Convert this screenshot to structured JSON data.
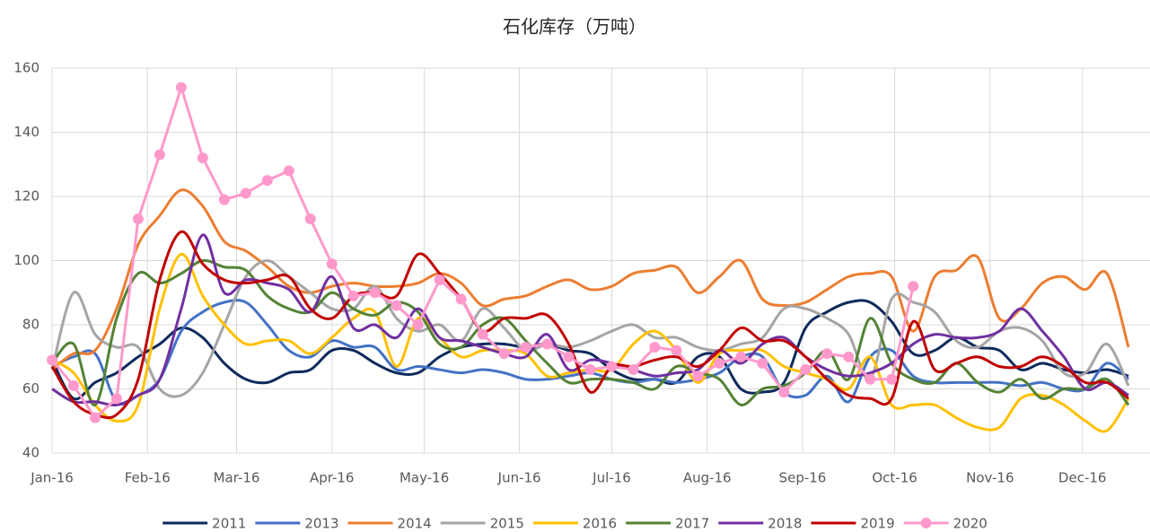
{
  "chart_data": {
    "type": "line",
    "title": "石化库存（万吨）",
    "x": [
      0,
      1,
      2,
      3,
      4,
      5,
      6,
      7,
      8,
      9,
      10,
      11,
      12,
      13,
      14,
      15,
      16,
      17,
      18,
      19,
      20,
      21,
      22,
      23,
      24,
      25,
      26,
      27,
      28,
      29,
      30,
      31,
      32,
      33,
      34,
      35,
      36,
      37,
      38,
      39,
      40,
      41,
      42,
      43,
      44,
      45,
      46,
      47,
      48,
      49,
      50
    ],
    "xlim": [
      0,
      51
    ],
    "xticks": [
      {
        "value": 0,
        "label": "Jan-16"
      },
      {
        "value": 4.43,
        "label": "Feb-16"
      },
      {
        "value": 8.57,
        "label": "Mar-16"
      },
      {
        "value": 13,
        "label": "Apr-16"
      },
      {
        "value": 17.29,
        "label": "May-16"
      },
      {
        "value": 21.71,
        "label": "Jun-16"
      },
      {
        "value": 26,
        "label": "Jul-16"
      },
      {
        "value": 30.43,
        "label": "Aug-16"
      },
      {
        "value": 34.86,
        "label": "Sep-16"
      },
      {
        "value": 39.14,
        "label": "Oct-16"
      },
      {
        "value": 43.57,
        "label": "Nov-16"
      },
      {
        "value": 47.86,
        "label": "Dec-16"
      }
    ],
    "ylim": [
      40,
      160
    ],
    "yticks": [
      40,
      60,
      80,
      100,
      120,
      140,
      160
    ],
    "grid": true,
    "legend": "bottom",
    "series": [
      {
        "name": "2011",
        "color": "#0e2a5c",
        "smooth": true,
        "values": [
          69,
          57,
          62,
          65,
          70,
          74,
          79,
          76,
          68,
          63,
          62,
          65,
          66,
          72,
          72,
          68,
          65,
          65,
          70,
          73,
          74,
          74,
          73,
          74,
          72,
          71,
          66,
          63,
          63,
          62,
          70,
          70,
          60,
          59,
          62,
          79,
          84,
          87,
          87,
          81,
          71,
          72,
          76,
          73,
          72,
          66,
          68,
          66,
          65,
          66,
          64
        ]
      },
      {
        "name": "2013",
        "color": "#4472c4",
        "smooth": true,
        "values": [
          67,
          70,
          71,
          56,
          58,
          63,
          78,
          84,
          87,
          87,
          80,
          72,
          70,
          75,
          73,
          73,
          66,
          67,
          66,
          65,
          66,
          65,
          63,
          63,
          64,
          65,
          63,
          62,
          63,
          62,
          63,
          65,
          70,
          70,
          59,
          58,
          64,
          56,
          70,
          72,
          64,
          62,
          62,
          62,
          62,
          61,
          62,
          60,
          60,
          68,
          63
        ]
      },
      {
        "name": "2014",
        "color": "#ed7d31",
        "smooth": true,
        "values": [
          66,
          71,
          72,
          85,
          105,
          114,
          122,
          117,
          106,
          103,
          98,
          92,
          90,
          92,
          93,
          92,
          92,
          93,
          96,
          93,
          86,
          88,
          89,
          92,
          94,
          91,
          92,
          96,
          97,
          98,
          90,
          95,
          100,
          88,
          86,
          87,
          91,
          95,
          96,
          95,
          78,
          95,
          97,
          101,
          82,
          85,
          93,
          95,
          91,
          96,
          73
        ]
      },
      {
        "name": "2015",
        "color": "#a5a5a5",
        "smooth": true,
        "values": [
          66,
          90,
          77,
          73,
          73,
          60,
          58,
          65,
          80,
          95,
          100,
          95,
          90,
          85,
          85,
          92,
          82,
          78,
          80,
          75,
          85,
          79,
          72,
          74,
          73,
          75,
          78,
          80,
          76,
          76,
          73,
          72,
          74,
          76,
          85,
          85,
          82,
          77,
          63,
          88,
          87,
          84,
          75,
          73,
          78,
          79,
          75,
          65,
          65,
          74,
          61
        ]
      },
      {
        "name": "2016",
        "color": "#ffc000",
        "smooth": true,
        "values": [
          69,
          65,
          55,
          50,
          55,
          85,
          102,
          89,
          80,
          74,
          75,
          75,
          71,
          76,
          82,
          84,
          67,
          82,
          76,
          70,
          72,
          72,
          71,
          64,
          65,
          66,
          66,
          74,
          78,
          72,
          62,
          71,
          72,
          72,
          67,
          65,
          63,
          60,
          70,
          55,
          55,
          55,
          51,
          48,
          48,
          57,
          58,
          55,
          50,
          47,
          57
        ]
      },
      {
        "name": "2017",
        "color": "#548235",
        "smooth": true,
        "values": [
          68,
          74,
          55,
          82,
          96,
          93,
          96,
          100,
          98,
          97,
          89,
          85,
          84,
          90,
          85,
          83,
          87,
          84,
          74,
          73,
          80,
          82,
          75,
          68,
          62,
          63,
          63,
          62,
          60,
          67,
          65,
          63,
          55,
          60,
          61,
          65,
          72,
          63,
          82,
          68,
          63,
          62,
          68,
          62,
          59,
          63,
          57,
          60,
          60,
          63,
          55
        ]
      },
      {
        "name": "2018",
        "color": "#7030a0",
        "smooth": true,
        "values": [
          60,
          56,
          56,
          55,
          58,
          63,
          85,
          108,
          90,
          94,
          93,
          91,
          84,
          95,
          79,
          80,
          76,
          85,
          76,
          75,
          73,
          71,
          70,
          77,
          66,
          69,
          68,
          66,
          64,
          65,
          66,
          72,
          68,
          74,
          76,
          70,
          66,
          64,
          65,
          68,
          74,
          77,
          76,
          76,
          78,
          85,
          78,
          70,
          60,
          62,
          58
        ]
      },
      {
        "name": "2019",
        "color": "#c00000",
        "smooth": true,
        "values": [
          67,
          56,
          52,
          52,
          63,
          94,
          109,
          99,
          94,
          93,
          94,
          95,
          85,
          82,
          89,
          90,
          89,
          102,
          96,
          88,
          78,
          82,
          82,
          83,
          74,
          59,
          67,
          67,
          69,
          70,
          67,
          72,
          79,
          75,
          75,
          70,
          63,
          58,
          57,
          57,
          81,
          66,
          68,
          70,
          67,
          67,
          70,
          67,
          62,
          62,
          57
        ]
      },
      {
        "name": "2020",
        "color": "#ff99cc",
        "smooth": false,
        "markers": true,
        "values": [
          69,
          61,
          51,
          57,
          113,
          133,
          154,
          132,
          119,
          121,
          125,
          128,
          113,
          99,
          89,
          90,
          86,
          80,
          94,
          88,
          77,
          71,
          73,
          74,
          70,
          66,
          67,
          66,
          73,
          72,
          64,
          68,
          70,
          68,
          59,
          66,
          71,
          70,
          63,
          63,
          92,
          null,
          null,
          null,
          null,
          null,
          null,
          null,
          null,
          null,
          null
        ]
      }
    ]
  }
}
